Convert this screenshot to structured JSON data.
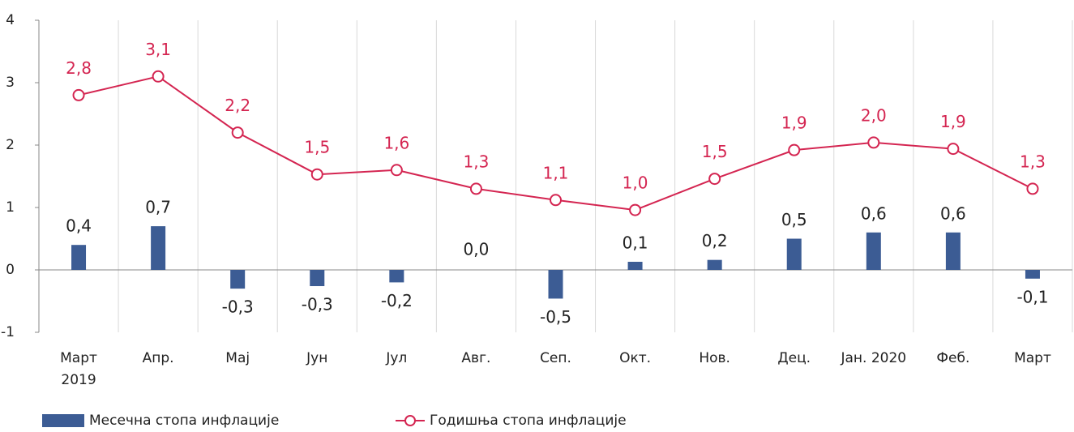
{
  "chart_data": {
    "type": "bar_line",
    "categories": [
      "Март\n2019",
      "Апр.",
      "Мај",
      "Јун",
      "Јул",
      "Авг.",
      "Сеп.",
      "Окт.",
      "Нов.",
      "Дец.",
      "Јан. 2020",
      "Феб.",
      "Март"
    ],
    "series": [
      {
        "name": "Месечна стопа инфлације",
        "type": "bar",
        "color": "#3c5c94",
        "values": [
          0.4,
          0.7,
          -0.3,
          -0.26,
          -0.2,
          0.0,
          -0.46,
          0.13,
          0.16,
          0.5,
          0.6,
          0.6,
          -0.14
        ],
        "value_labels": [
          "0,4",
          "0,7",
          "-0,3",
          "-0,3",
          "-0,2",
          "0,0",
          "-0,5",
          "0,1",
          "0,2",
          "0,5",
          "0,6",
          "0,6",
          "-0,1"
        ]
      },
      {
        "name": "Годишња стопа инфлације",
        "type": "line",
        "color": "#d42551",
        "values": [
          2.8,
          3.1,
          2.2,
          1.53,
          1.6,
          1.3,
          1.12,
          0.96,
          1.46,
          1.92,
          2.04,
          1.94,
          1.3
        ],
        "value_labels": [
          "2,8",
          "3,1",
          "2,2",
          "1,5",
          "1,6",
          "1,3",
          "1,1",
          "1,0",
          "1,5",
          "1,9",
          "2,0",
          "1,9",
          "1,3"
        ]
      }
    ],
    "ylim": [
      -1,
      4
    ],
    "yticks": [
      -1,
      0,
      1,
      2,
      3,
      4
    ],
    "grid": true,
    "legend": "bottom"
  }
}
